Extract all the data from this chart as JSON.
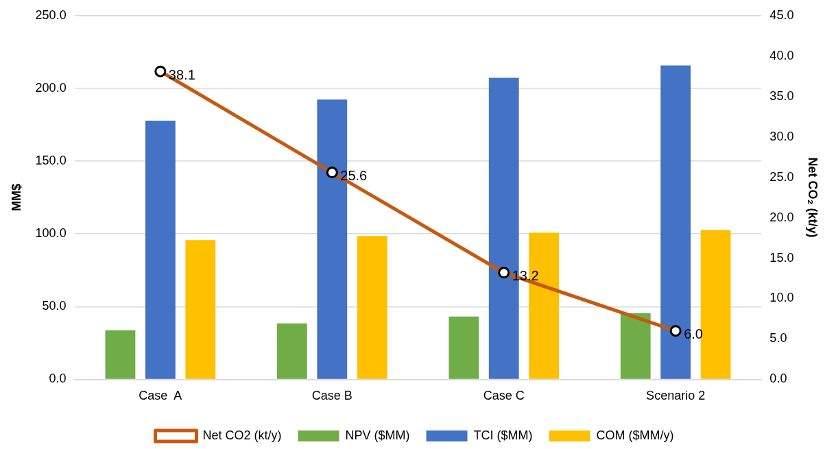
{
  "chart_data": {
    "type": "bar",
    "categories": [
      "Case  A",
      "Case B",
      "Case C",
      "Scenario 2"
    ],
    "ylabel": "MM$",
    "y2label": "Net CO₂ (kt/y)",
    "ylim": [
      0,
      250
    ],
    "yticks": [
      {
        "value": 0,
        "label": "0.0"
      },
      {
        "value": 50,
        "label": "50.0"
      },
      {
        "value": 100,
        "label": "100.0"
      },
      {
        "value": 150,
        "label": "150.0"
      },
      {
        "value": 200,
        "label": "200.0"
      },
      {
        "value": 250,
        "label": "250.0"
      }
    ],
    "y2lim": [
      0,
      45
    ],
    "y2ticks": [
      {
        "value": 0,
        "label": "0.0"
      },
      {
        "value": 5,
        "label": "5.0"
      },
      {
        "value": 10,
        "label": "10.0"
      },
      {
        "value": 15,
        "label": "15.0"
      },
      {
        "value": 20,
        "label": "20.0"
      },
      {
        "value": 25,
        "label": "25.0"
      },
      {
        "value": 30,
        "label": "30.0"
      },
      {
        "value": 35,
        "label": "35.0"
      },
      {
        "value": 40,
        "label": "40.0"
      },
      {
        "value": 45,
        "label": "45.0"
      }
    ],
    "grid": "y",
    "legend": "bottom",
    "marker": "circle",
    "series": [
      {
        "name": "NPV ($MM)",
        "color": "#70ad47",
        "values": [
          33.8,
          38.5,
          43.2,
          45.5
        ]
      },
      {
        "name": "TCI ($MM)",
        "color": "#4472c4",
        "values": [
          177.8,
          192.3,
          207.3,
          215.8
        ]
      },
      {
        "name": "COM ($MM/y)",
        "color": "#ffc000",
        "values": [
          95.7,
          98.5,
          100.8,
          102.7
        ]
      },
      {
        "name": "Net CO2 (kt/y)",
        "type": "line",
        "axis": "y2",
        "color": "#c55a11",
        "values": [
          38.1,
          25.6,
          13.2,
          6.0
        ],
        "value_labels": [
          "38.1",
          "25.6",
          "13.2",
          "6.0"
        ]
      }
    ]
  }
}
